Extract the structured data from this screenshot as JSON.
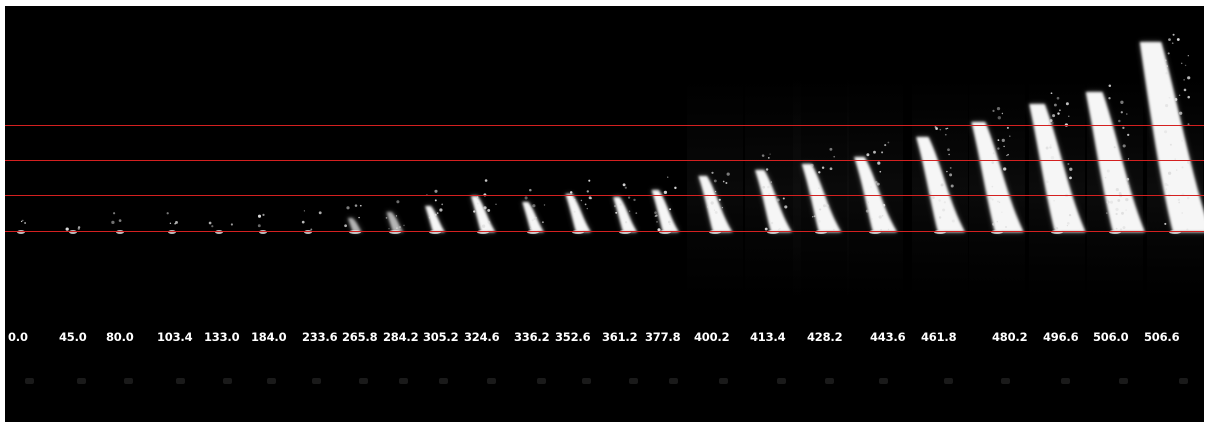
{
  "colors": {
    "background": "#000000",
    "reference_line": "#d42020",
    "label": "#ffffff"
  },
  "sequence": {
    "time_labels": [
      "0.0",
      "45.0",
      "80.0",
      "103.4",
      "133.0",
      "184.0",
      "233.6",
      "265.8",
      "284.2",
      "305.2",
      "324.6",
      "336.2",
      "352.6",
      "361.2",
      "377.8",
      "400.2",
      "413.4",
      "428.2",
      "443.6",
      "461.8",
      "480.2",
      "496.6",
      "506.0",
      "506.6"
    ],
    "reference_line_count": 4
  }
}
